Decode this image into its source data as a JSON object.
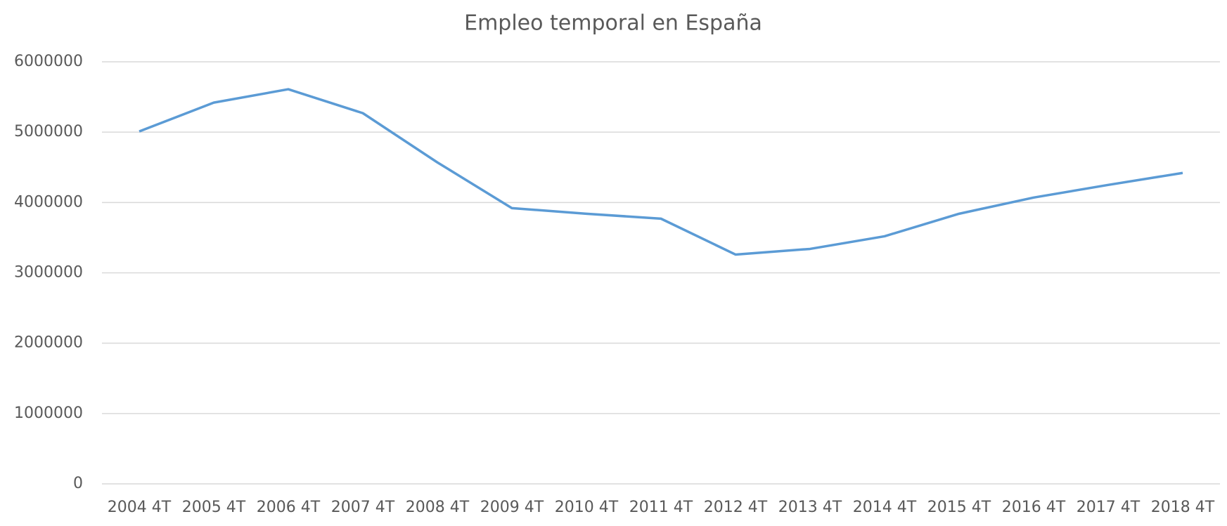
{
  "chart_data": {
    "type": "line",
    "title": "Empleo temporal en España",
    "categories": [
      "2004 4T",
      "2005 4T",
      "2006 4T",
      "2007 4T",
      "2008 4T",
      "2009 4T",
      "2010 4T",
      "2011 4T",
      "2012 4T",
      "2013 4T",
      "2014 4T",
      "2015 4T",
      "2016 4T",
      "2017 4T",
      "2018 4T"
    ],
    "series": [
      {
        "name": "Empleo temporal",
        "color": "#5b9bd5",
        "values": [
          5010000,
          5420000,
          5610000,
          5270000,
          4570000,
          3920000,
          3840000,
          3770000,
          3260000,
          3340000,
          3520000,
          3840000,
          4070000,
          4250000,
          4420000
        ]
      }
    ],
    "ylim": [
      0,
      6000000
    ],
    "yticks": [
      0,
      1000000,
      2000000,
      3000000,
      4000000,
      5000000,
      6000000
    ],
    "grid": true
  }
}
